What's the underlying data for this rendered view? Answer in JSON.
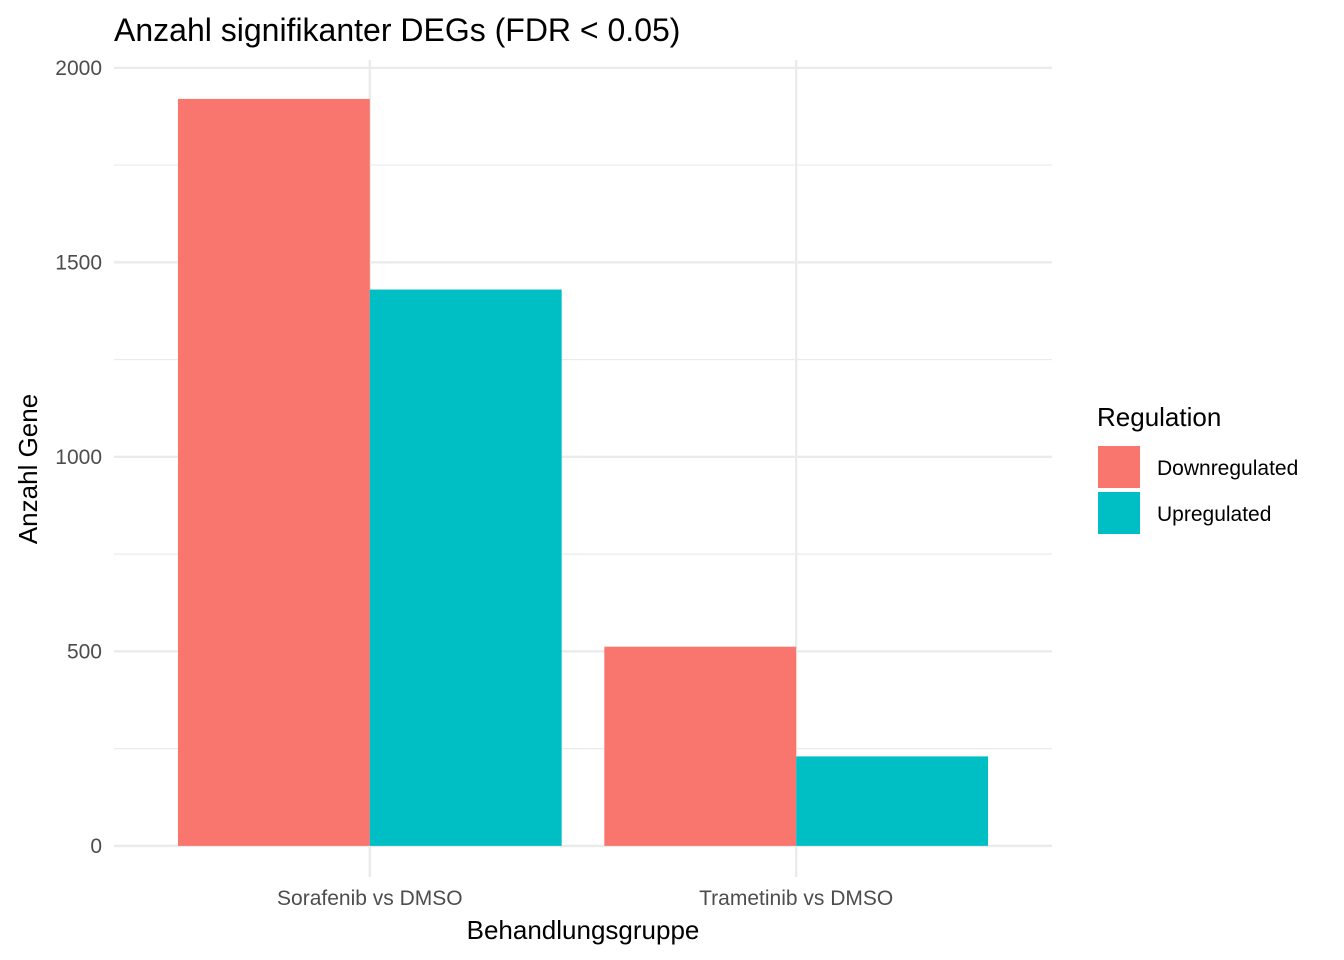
{
  "chart_data": {
    "type": "bar",
    "title": "Anzahl signifikanter DEGs (FDR < 0.05)",
    "xlabel": "Behandlungsgruppe",
    "ylabel": "Anzahl Gene",
    "categories": [
      "Sorafenib vs DMSO",
      "Trametinib vs DMSO"
    ],
    "series": [
      {
        "name": "Downregulated",
        "color": "#F8766D",
        "values": [
          1920,
          512
        ]
      },
      {
        "name": "Upregulated",
        "color": "#00BFC4",
        "values": [
          1430,
          230
        ]
      }
    ],
    "ylim": [
      -80,
      2020
    ],
    "yticks": [
      0,
      500,
      1000,
      1500,
      2000
    ],
    "ytick_labels": [
      "0",
      "500",
      "1000",
      "1500",
      "2000"
    ],
    "legend": {
      "title": "Regulation",
      "position": "right"
    },
    "grid": true
  }
}
